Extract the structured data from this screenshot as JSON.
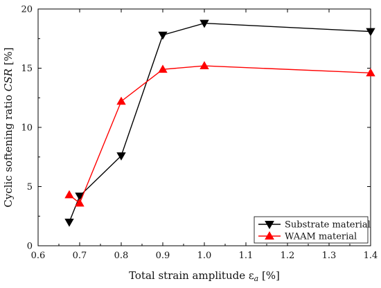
{
  "chart_data": {
    "type": "line",
    "xlabel": "Total strain amplitude ε",
    "xlabel_sub": "a",
    "xlabel_unit": " [%]",
    "ylabel": "Cyclic softening ratio ",
    "ylabel_italic": "CSR",
    "ylabel_unit": " [%]",
    "xlim": [
      0.6,
      1.4
    ],
    "ylim": [
      0,
      20
    ],
    "x_ticks": [
      0.6,
      0.7,
      0.8,
      0.9,
      1.0,
      1.1,
      1.2,
      1.3,
      1.4
    ],
    "x_tick_labels": [
      "0.6",
      "0.7",
      "0.8",
      "0.9",
      "1.0",
      "1.1",
      "1.2",
      "1.3",
      "1.4"
    ],
    "y_ticks": [
      0,
      5,
      10,
      15,
      20
    ],
    "y_tick_labels": [
      "0",
      "5",
      "10",
      "15",
      "20"
    ],
    "grid": false,
    "legend_position": "bottom-right",
    "series": [
      {
        "name": "Substrate material",
        "color": "#000000",
        "marker": "triangle-down",
        "x": [
          0.675,
          0.7,
          0.8,
          0.9,
          1.0,
          1.4
        ],
        "y": [
          2.0,
          4.2,
          7.6,
          17.8,
          18.8,
          18.1
        ]
      },
      {
        "name": "WAAM material",
        "color": "#ff0000",
        "marker": "triangle-up",
        "x": [
          0.675,
          0.7,
          0.8,
          0.9,
          1.0,
          1.4
        ],
        "y": [
          4.3,
          3.6,
          12.2,
          14.9,
          15.2,
          14.6
        ]
      }
    ]
  }
}
